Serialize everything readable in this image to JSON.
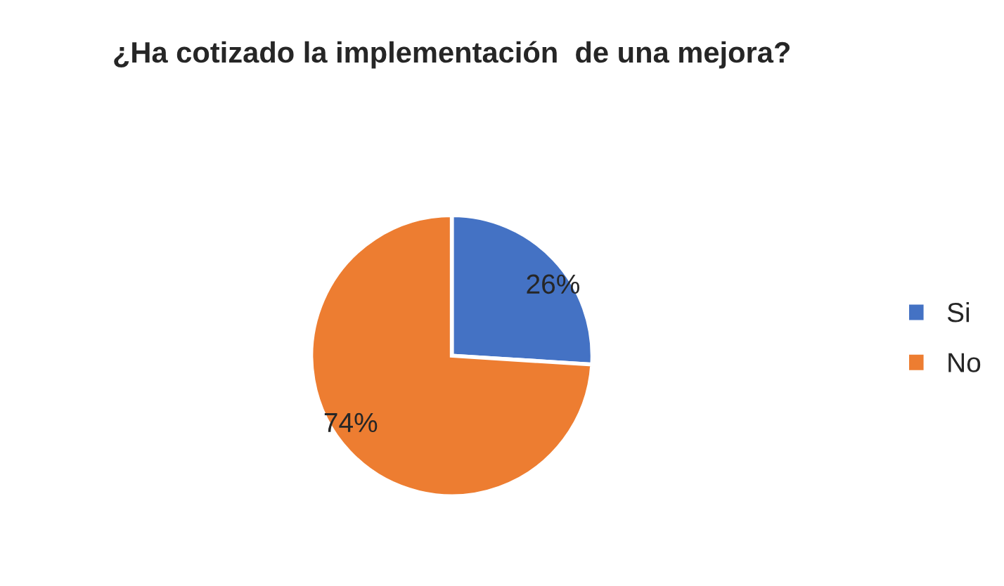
{
  "chart_data": {
    "type": "pie",
    "title": "¿Ha cotizado la implementación  de una mejora?",
    "categories": [
      "Si",
      "No"
    ],
    "values": [
      26,
      74
    ],
    "colors": [
      "#4472c4",
      "#ed7d31"
    ],
    "value_labels": [
      "26%",
      "74%"
    ],
    "legend": "right"
  }
}
